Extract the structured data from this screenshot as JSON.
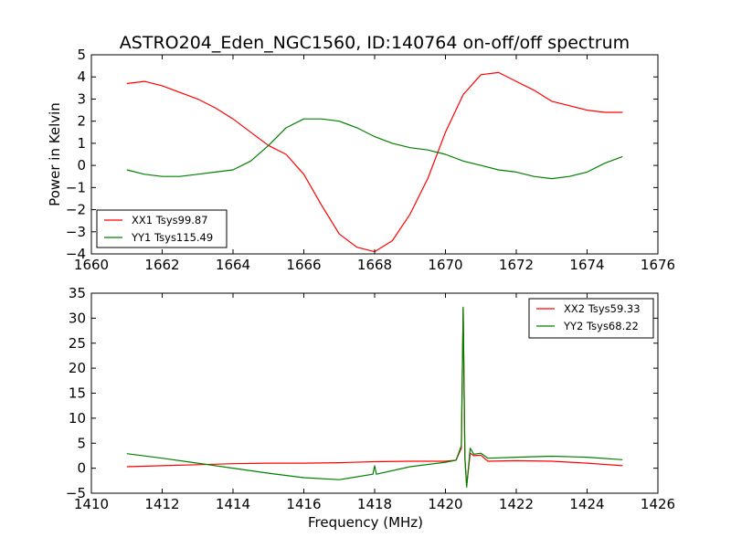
{
  "figure": {
    "title": "ASTRO204_Eden_NGC1560, ID:140764 on-off/off spectrum"
  },
  "chart_data": [
    {
      "type": "line",
      "ylabel": "Power in Kelvin",
      "xlabel": "",
      "xlim": [
        1660,
        1676
      ],
      "ylim": [
        -4,
        5
      ],
      "xticks": [
        1660,
        1662,
        1664,
        1666,
        1668,
        1670,
        1672,
        1674,
        1676
      ],
      "yticks": [
        -4,
        -3,
        -2,
        -1,
        0,
        1,
        2,
        3,
        4,
        5
      ],
      "legend_position": "lower-left",
      "series": [
        {
          "name": "XX1 Tsys99.87",
          "color": "#ff0000",
          "x": [
            1661.0,
            1661.5,
            1662.0,
            1662.5,
            1663.0,
            1663.5,
            1664.0,
            1664.5,
            1665.0,
            1665.5,
            1666.0,
            1666.5,
            1667.0,
            1667.5,
            1668.0,
            1668.5,
            1669.0,
            1669.5,
            1670.0,
            1670.5,
            1671.0,
            1671.5,
            1672.0,
            1672.5,
            1673.0,
            1673.5,
            1674.0,
            1674.5,
            1675.0
          ],
          "y": [
            3.7,
            3.8,
            3.6,
            3.3,
            3.0,
            2.6,
            2.1,
            1.5,
            0.9,
            0.5,
            -0.4,
            -1.8,
            -3.1,
            -3.7,
            -3.9,
            -3.4,
            -2.2,
            -0.6,
            1.5,
            3.2,
            4.1,
            4.2,
            3.8,
            3.4,
            2.9,
            2.7,
            2.5,
            2.4,
            2.4
          ]
        },
        {
          "name": "YY1 Tsys115.49",
          "color": "#008000",
          "x": [
            1661.0,
            1661.5,
            1662.0,
            1662.5,
            1663.0,
            1663.5,
            1664.0,
            1664.5,
            1665.0,
            1665.5,
            1666.0,
            1666.5,
            1667.0,
            1667.5,
            1668.0,
            1668.5,
            1669.0,
            1669.5,
            1670.0,
            1670.5,
            1671.0,
            1671.5,
            1672.0,
            1672.5,
            1673.0,
            1673.5,
            1674.0,
            1674.5,
            1675.0
          ],
          "y": [
            -0.2,
            -0.4,
            -0.5,
            -0.5,
            -0.4,
            -0.3,
            -0.2,
            0.2,
            0.9,
            1.7,
            2.1,
            2.1,
            2.0,
            1.7,
            1.3,
            1.0,
            0.8,
            0.7,
            0.5,
            0.2,
            0.0,
            -0.2,
            -0.3,
            -0.5,
            -0.6,
            -0.5,
            -0.3,
            0.1,
            0.4
          ]
        }
      ]
    },
    {
      "type": "line",
      "ylabel": "",
      "xlabel": "Frequency (MHz)",
      "xlim": [
        1410,
        1426
      ],
      "ylim": [
        -5,
        35
      ],
      "xticks": [
        1410,
        1412,
        1414,
        1416,
        1418,
        1420,
        1422,
        1424,
        1426
      ],
      "yticks": [
        -5,
        0,
        5,
        10,
        15,
        20,
        25,
        30,
        35
      ],
      "legend_position": "upper-right",
      "series": [
        {
          "name": "XX2 Tsys59.33",
          "color": "#ff0000",
          "x": [
            1411.0,
            1412.0,
            1413.0,
            1414.0,
            1415.0,
            1416.0,
            1417.0,
            1418.0,
            1419.0,
            1420.0,
            1420.3,
            1420.45,
            1420.5,
            1420.55,
            1420.6,
            1420.7,
            1420.8,
            1421.0,
            1421.2,
            1422.0,
            1423.0,
            1424.0,
            1425.0
          ],
          "y": [
            0.3,
            0.5,
            0.7,
            0.9,
            1.0,
            1.0,
            1.1,
            1.3,
            1.4,
            1.4,
            1.6,
            4.0,
            32.0,
            2.0,
            -3.5,
            3.0,
            2.5,
            2.6,
            1.4,
            1.5,
            1.4,
            1.0,
            0.5
          ]
        },
        {
          "name": "YY2 Tsys68.22",
          "color": "#008000",
          "x": [
            1411.0,
            1412.0,
            1413.0,
            1414.0,
            1415.0,
            1416.0,
            1417.0,
            1417.95,
            1418.0,
            1418.05,
            1419.0,
            1420.0,
            1420.3,
            1420.45,
            1420.5,
            1420.55,
            1420.6,
            1420.7,
            1420.8,
            1421.0,
            1421.2,
            1422.0,
            1423.0,
            1424.0,
            1425.0
          ],
          "y": [
            2.9,
            2.0,
            1.0,
            0.0,
            -1.0,
            -1.9,
            -2.3,
            -1.2,
            0.5,
            -1.2,
            0.3,
            1.2,
            1.6,
            4.5,
            32.2,
            2.0,
            -3.8,
            4.0,
            2.8,
            3.0,
            2.0,
            2.2,
            2.4,
            2.2,
            1.7
          ]
        }
      ]
    }
  ]
}
